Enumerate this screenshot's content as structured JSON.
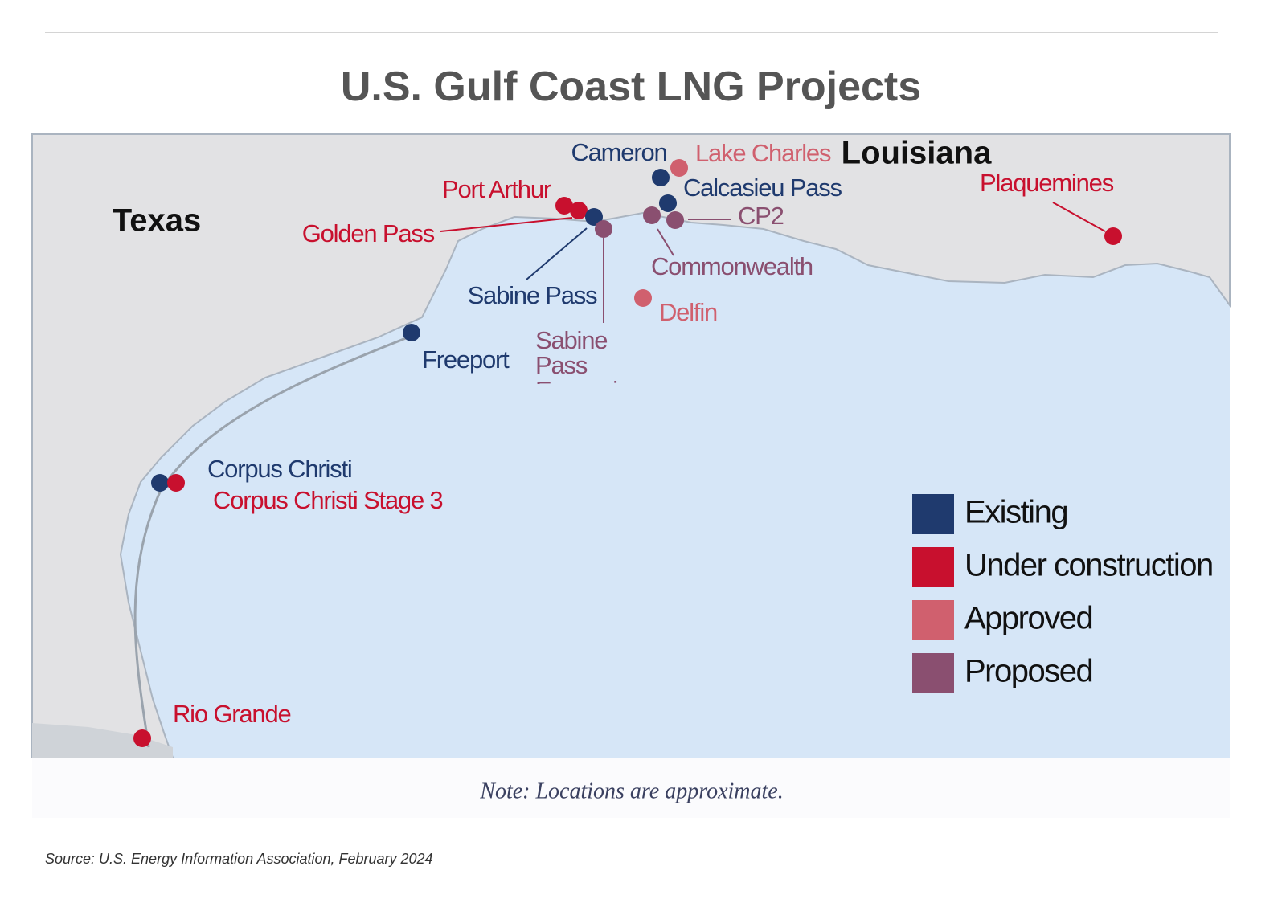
{
  "header": {
    "title": "U.S. Gulf Coast LNG Projects"
  },
  "map": {
    "regions": [
      "Texas",
      "Louisiana"
    ],
    "projects": [
      {
        "name": "Cameron",
        "status": "Existing"
      },
      {
        "name": "Lake Charles",
        "status": "Approved"
      },
      {
        "name": "Calcasieu Pass",
        "status": "Existing"
      },
      {
        "name": "Port Arthur",
        "status": "Under construction"
      },
      {
        "name": "Golden Pass",
        "status": "Under construction"
      },
      {
        "name": "Sabine Pass",
        "status": "Existing"
      },
      {
        "name": "Sabine Pass Expansion",
        "status": "Proposed"
      },
      {
        "name": "CP2",
        "status": "Proposed"
      },
      {
        "name": "Commonwealth",
        "status": "Proposed"
      },
      {
        "name": "Delfin",
        "status": "Approved"
      },
      {
        "name": "Freeport",
        "status": "Existing"
      },
      {
        "name": "Corpus Christi",
        "status": "Existing"
      },
      {
        "name": "Corpus Christi Stage 3",
        "status": "Under construction"
      },
      {
        "name": "Rio Grande",
        "status": "Under construction"
      },
      {
        "name": "Plaquemines",
        "status": "Under construction"
      }
    ],
    "legend": [
      {
        "label": "Existing",
        "color": "#1f3a6e"
      },
      {
        "label": "Under construction",
        "color": "#c8102e"
      },
      {
        "label": "Approved",
        "color": "#d0606e"
      },
      {
        "label": "Proposed",
        "color": "#8a4f70"
      }
    ],
    "note": "Note: Locations are approximate."
  },
  "footer": {
    "source": "Source: U.S. Energy Information Association, February 2024"
  }
}
